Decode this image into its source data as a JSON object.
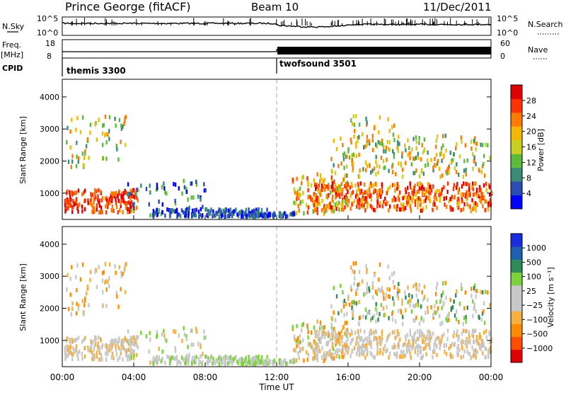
{
  "header": {
    "station": "Prince George (fitACF)",
    "beam": "Beam 10",
    "date": "11/Dec/2011"
  },
  "panels": {
    "noise_left_label": "N.Sky",
    "noise_right_label": "N.Search",
    "noise_left_ticks": [
      "10^5",
      "10^0"
    ],
    "noise_right_ticks": [
      "10^5",
      "10^0"
    ],
    "freq_label_1": "Freq.",
    "freq_label_2": "[MHz]",
    "freq_ticks": [
      "18",
      "8"
    ],
    "nave_label": "Nave",
    "nave_ticks": [
      "60",
      "0"
    ],
    "cpid_label": "CPID",
    "cpid_1": "themis 3300",
    "cpid_2": "twofsound 3501"
  },
  "colors": {
    "power": [
      "#0000ff",
      "#2a4db3",
      "#3a8c78",
      "#5dbb3c",
      "#c8d020",
      "#f5b800",
      "#ff7a00",
      "#ff3300",
      "#e00000"
    ],
    "velocity": [
      "#e00000",
      "#ff4d00",
      "#ff8c00",
      "#f5b040",
      "#c8c8c8",
      "#c8c8c8",
      "#7cd23c",
      "#2e8b57",
      "#1e5fb0",
      "#1a2ee0"
    ],
    "dashed_line": "#aaaaaa"
  },
  "chart_data": [
    {
      "type": "heatmap",
      "name": "power",
      "ylabel": "Slant Range [km]",
      "yticks": [
        "1000",
        "2000",
        "3000",
        "4000"
      ],
      "colorbar_label": "Power [dB]",
      "colorbar_ticks": [
        "4",
        "8",
        "12",
        "16",
        "20",
        "24",
        "28"
      ],
      "ylim": [
        180,
        4550
      ],
      "xlim": [
        0,
        24
      ]
    },
    {
      "type": "heatmap",
      "name": "velocity",
      "ylabel": "Slant Range [km]",
      "yticks": [
        "1000",
        "2000",
        "3000",
        "4000"
      ],
      "colorbar_label": "Velocity [m s⁻¹]",
      "colorbar_ticks": [
        "1000",
        "500",
        "100",
        "25",
        "−25",
        "−100",
        "−500",
        "−1000"
      ],
      "ylim": [
        180,
        4550
      ],
      "xlim": [
        0,
        24
      ]
    }
  ],
  "xaxis": {
    "ticks": [
      "00:00",
      "04:00",
      "08:00",
      "12:00",
      "16:00",
      "20:00",
      "00:00"
    ],
    "label": "Time UT"
  }
}
